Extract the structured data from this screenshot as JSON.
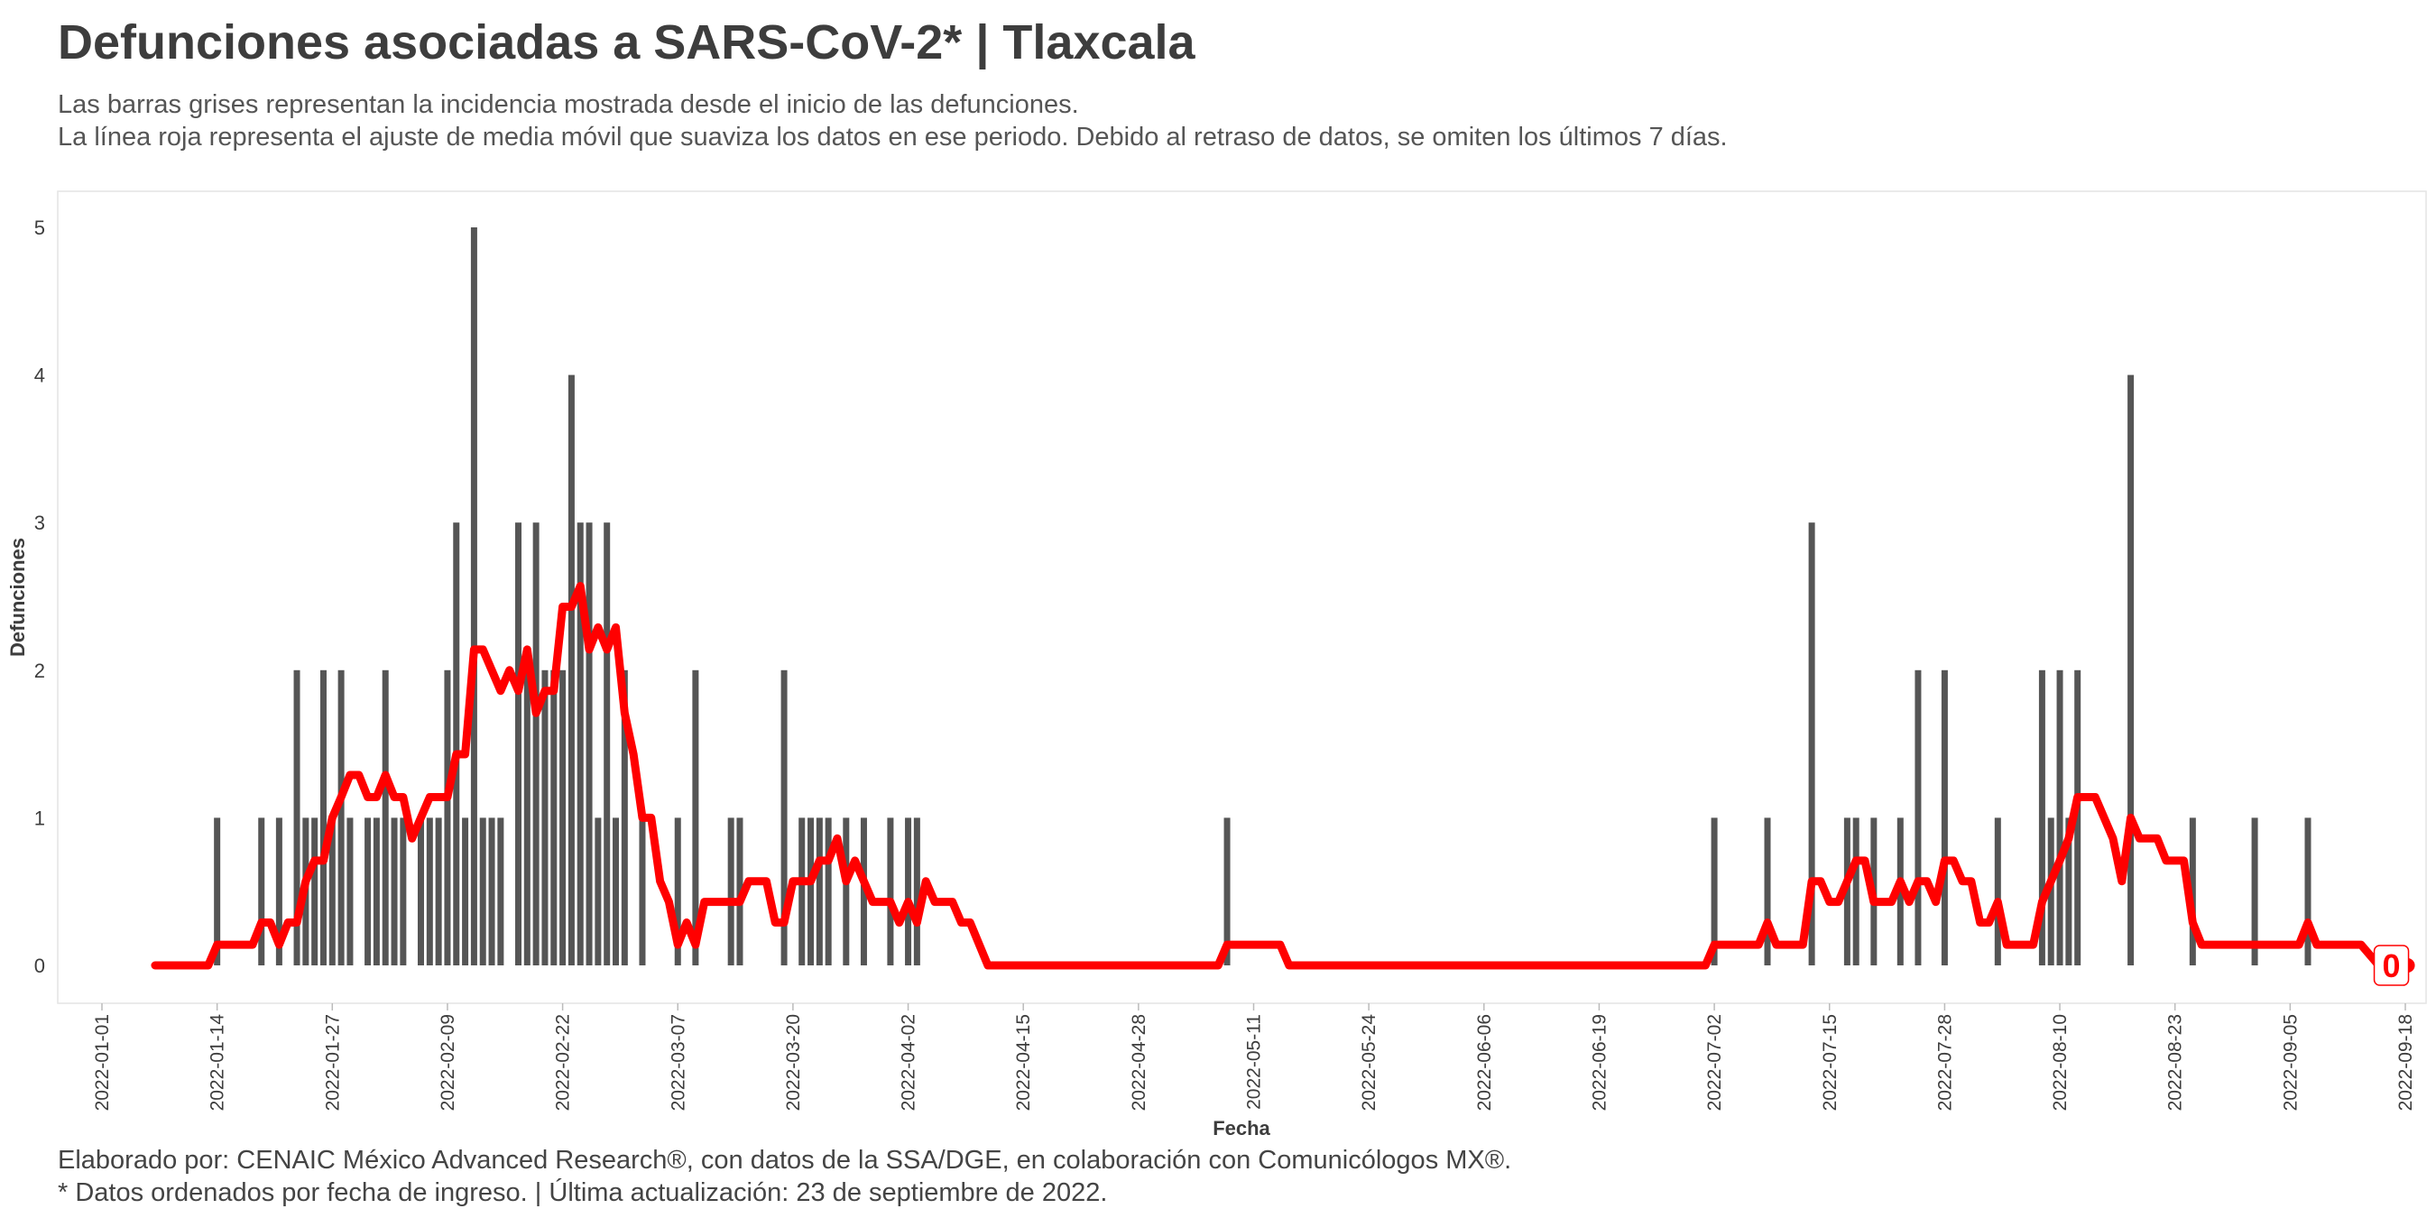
{
  "title": "Defunciones asociadas a SARS-CoV-2* | Tlaxcala",
  "subtitle_lines": [
    "Las barras grises representan la incidencia mostrada desde el inicio de las defunciones.",
    "La línea roja representa el ajuste de media móvil que suaviza los datos en ese periodo. Debido al retraso de datos, se omiten los últimos 7 días."
  ],
  "caption_lines": [
    "Elaborado por: CENAIC México Advanced Research®, con datos de la SSA/DGE, en colaboración con Comunicólogos MX®.",
    "* Datos ordenados por fecha de ingreso. | Última actualización: 23 de septiembre de 2022."
  ],
  "colors": {
    "bars": "#555555",
    "line": "#ff0000",
    "text": "#3d3d3d",
    "panel_border": "#e4e4e4"
  },
  "chart_data": {
    "type": "bar",
    "xlabel": "Fecha",
    "ylabel": "Defunciones",
    "x_range": [
      "2022-01-01",
      "2022-09-18"
    ],
    "ylim": [
      0,
      5
    ],
    "x_ticks": [
      "2022-01-01",
      "2022-01-14",
      "2022-01-27",
      "2022-02-09",
      "2022-02-22",
      "2022-03-07",
      "2022-03-20",
      "2022-04-02",
      "2022-04-15",
      "2022-04-28",
      "2022-05-11",
      "2022-05-24",
      "2022-06-06",
      "2022-06-19",
      "2022-07-02",
      "2022-07-15",
      "2022-07-28",
      "2022-08-10",
      "2022-08-23",
      "2022-09-05",
      "2022-09-18"
    ],
    "y_ticks": [
      0,
      1,
      2,
      3,
      4,
      5
    ],
    "grid": false,
    "end_label": "0",
    "bars": [
      [
        "2022-01-14",
        1
      ],
      [
        "2022-01-19",
        1
      ],
      [
        "2022-01-21",
        1
      ],
      [
        "2022-01-23",
        2
      ],
      [
        "2022-01-24",
        1
      ],
      [
        "2022-01-25",
        1
      ],
      [
        "2022-01-26",
        2
      ],
      [
        "2022-01-27",
        1
      ],
      [
        "2022-01-28",
        2
      ],
      [
        "2022-01-29",
        1
      ],
      [
        "2022-01-31",
        1
      ],
      [
        "2022-02-01",
        1
      ],
      [
        "2022-02-02",
        2
      ],
      [
        "2022-02-03",
        1
      ],
      [
        "2022-02-04",
        1
      ],
      [
        "2022-02-06",
        1
      ],
      [
        "2022-02-07",
        1
      ],
      [
        "2022-02-08",
        1
      ],
      [
        "2022-02-09",
        2
      ],
      [
        "2022-02-10",
        3
      ],
      [
        "2022-02-11",
        1
      ],
      [
        "2022-02-12",
        5
      ],
      [
        "2022-02-13",
        1
      ],
      [
        "2022-02-14",
        1
      ],
      [
        "2022-02-15",
        1
      ],
      [
        "2022-02-17",
        3
      ],
      [
        "2022-02-18",
        2
      ],
      [
        "2022-02-19",
        3
      ],
      [
        "2022-02-20",
        2
      ],
      [
        "2022-02-21",
        2
      ],
      [
        "2022-02-22",
        2
      ],
      [
        "2022-02-23",
        4
      ],
      [
        "2022-02-24",
        3
      ],
      [
        "2022-02-25",
        3
      ],
      [
        "2022-02-26",
        1
      ],
      [
        "2022-02-27",
        3
      ],
      [
        "2022-02-28",
        1
      ],
      [
        "2022-03-01",
        2
      ],
      [
        "2022-03-03",
        1
      ],
      [
        "2022-03-07",
        1
      ],
      [
        "2022-03-09",
        2
      ],
      [
        "2022-03-13",
        1
      ],
      [
        "2022-03-14",
        1
      ],
      [
        "2022-03-19",
        2
      ],
      [
        "2022-03-21",
        1
      ],
      [
        "2022-03-22",
        1
      ],
      [
        "2022-03-23",
        1
      ],
      [
        "2022-03-24",
        1
      ],
      [
        "2022-03-26",
        1
      ],
      [
        "2022-03-28",
        1
      ],
      [
        "2022-03-31",
        1
      ],
      [
        "2022-04-02",
        1
      ],
      [
        "2022-04-03",
        1
      ],
      [
        "2022-05-08",
        1
      ],
      [
        "2022-07-02",
        1
      ],
      [
        "2022-07-08",
        1
      ],
      [
        "2022-07-13",
        3
      ],
      [
        "2022-07-17",
        1
      ],
      [
        "2022-07-18",
        1
      ],
      [
        "2022-07-20",
        1
      ],
      [
        "2022-07-23",
        1
      ],
      [
        "2022-07-25",
        2
      ],
      [
        "2022-07-28",
        2
      ],
      [
        "2022-08-03",
        1
      ],
      [
        "2022-08-08",
        2
      ],
      [
        "2022-08-09",
        1
      ],
      [
        "2022-08-10",
        2
      ],
      [
        "2022-08-11",
        1
      ],
      [
        "2022-08-12",
        2
      ],
      [
        "2022-08-18",
        4
      ],
      [
        "2022-08-25",
        1
      ],
      [
        "2022-09-01",
        1
      ],
      [
        "2022-09-07",
        1
      ]
    ],
    "line": [
      [
        "2022-01-07",
        0
      ],
      [
        "2022-01-13",
        0
      ],
      [
        "2022-01-14",
        0.14
      ],
      [
        "2022-01-18",
        0.14
      ],
      [
        "2022-01-19",
        0.29
      ],
      [
        "2022-01-20",
        0.29
      ],
      [
        "2022-01-21",
        0.14
      ],
      [
        "2022-01-22",
        0.29
      ],
      [
        "2022-01-23",
        0.29
      ],
      [
        "2022-01-24",
        0.57
      ],
      [
        "2022-01-25",
        0.71
      ],
      [
        "2022-01-26",
        0.71
      ],
      [
        "2022-01-27",
        1.0
      ],
      [
        "2022-01-28",
        1.14
      ],
      [
        "2022-01-29",
        1.29
      ],
      [
        "2022-01-30",
        1.29
      ],
      [
        "2022-01-31",
        1.14
      ],
      [
        "2022-02-01",
        1.14
      ],
      [
        "2022-02-02",
        1.29
      ],
      [
        "2022-02-03",
        1.14
      ],
      [
        "2022-02-04",
        1.14
      ],
      [
        "2022-02-05",
        0.86
      ],
      [
        "2022-02-06",
        1.0
      ],
      [
        "2022-02-07",
        1.14
      ],
      [
        "2022-02-08",
        1.14
      ],
      [
        "2022-02-09",
        1.14
      ],
      [
        "2022-02-10",
        1.43
      ],
      [
        "2022-02-11",
        1.43
      ],
      [
        "2022-02-12",
        2.14
      ],
      [
        "2022-02-13",
        2.14
      ],
      [
        "2022-02-14",
        2.0
      ],
      [
        "2022-02-15",
        1.86
      ],
      [
        "2022-02-16",
        2.0
      ],
      [
        "2022-02-17",
        1.86
      ],
      [
        "2022-02-18",
        2.14
      ],
      [
        "2022-02-19",
        1.71
      ],
      [
        "2022-02-20",
        1.86
      ],
      [
        "2022-02-21",
        1.86
      ],
      [
        "2022-02-22",
        2.43
      ],
      [
        "2022-02-23",
        2.43
      ],
      [
        "2022-02-24",
        2.57
      ],
      [
        "2022-02-25",
        2.14
      ],
      [
        "2022-02-26",
        2.29
      ],
      [
        "2022-02-27",
        2.14
      ],
      [
        "2022-02-28",
        2.29
      ],
      [
        "2022-03-01",
        1.71
      ],
      [
        "2022-03-02",
        1.43
      ],
      [
        "2022-03-03",
        1.0
      ],
      [
        "2022-03-04",
        1.0
      ],
      [
        "2022-03-05",
        0.57
      ],
      [
        "2022-03-06",
        0.43
      ],
      [
        "2022-03-07",
        0.14
      ],
      [
        "2022-03-08",
        0.29
      ],
      [
        "2022-03-09",
        0.14
      ],
      [
        "2022-03-10",
        0.43
      ],
      [
        "2022-03-13",
        0.43
      ],
      [
        "2022-03-14",
        0.43
      ],
      [
        "2022-03-15",
        0.57
      ],
      [
        "2022-03-17",
        0.57
      ],
      [
        "2022-03-18",
        0.29
      ],
      [
        "2022-03-19",
        0.29
      ],
      [
        "2022-03-20",
        0.57
      ],
      [
        "2022-03-22",
        0.57
      ],
      [
        "2022-03-23",
        0.71
      ],
      [
        "2022-03-24",
        0.71
      ],
      [
        "2022-03-25",
        0.86
      ],
      [
        "2022-03-26",
        0.57
      ],
      [
        "2022-03-27",
        0.71
      ],
      [
        "2022-03-28",
        0.57
      ],
      [
        "2022-03-29",
        0.43
      ],
      [
        "2022-03-31",
        0.43
      ],
      [
        "2022-04-01",
        0.29
      ],
      [
        "2022-04-02",
        0.43
      ],
      [
        "2022-04-03",
        0.29
      ],
      [
        "2022-04-04",
        0.57
      ],
      [
        "2022-04-05",
        0.43
      ],
      [
        "2022-04-07",
        0.43
      ],
      [
        "2022-04-08",
        0.29
      ],
      [
        "2022-04-09",
        0.29
      ],
      [
        "2022-04-11",
        0
      ],
      [
        "2022-05-07",
        0
      ],
      [
        "2022-05-08",
        0.14
      ],
      [
        "2022-05-14",
        0.14
      ],
      [
        "2022-05-15",
        0
      ],
      [
        "2022-07-01",
        0
      ],
      [
        "2022-07-02",
        0.14
      ],
      [
        "2022-07-07",
        0.14
      ],
      [
        "2022-07-08",
        0.29
      ],
      [
        "2022-07-09",
        0.14
      ],
      [
        "2022-07-12",
        0.14
      ],
      [
        "2022-07-13",
        0.57
      ],
      [
        "2022-07-14",
        0.57
      ],
      [
        "2022-07-15",
        0.43
      ],
      [
        "2022-07-16",
        0.43
      ],
      [
        "2022-07-17",
        0.57
      ],
      [
        "2022-07-18",
        0.71
      ],
      [
        "2022-07-19",
        0.71
      ],
      [
        "2022-07-20",
        0.43
      ],
      [
        "2022-07-22",
        0.43
      ],
      [
        "2022-07-23",
        0.57
      ],
      [
        "2022-07-24",
        0.43
      ],
      [
        "2022-07-25",
        0.57
      ],
      [
        "2022-07-26",
        0.57
      ],
      [
        "2022-07-27",
        0.43
      ],
      [
        "2022-07-28",
        0.71
      ],
      [
        "2022-07-29",
        0.71
      ],
      [
        "2022-07-30",
        0.57
      ],
      [
        "2022-07-31",
        0.57
      ],
      [
        "2022-08-01",
        0.29
      ],
      [
        "2022-08-02",
        0.29
      ],
      [
        "2022-08-03",
        0.43
      ],
      [
        "2022-08-04",
        0.14
      ],
      [
        "2022-08-07",
        0.14
      ],
      [
        "2022-08-08",
        0.43
      ],
      [
        "2022-08-09",
        0.57
      ],
      [
        "2022-08-10",
        0.71
      ],
      [
        "2022-08-11",
        0.86
      ],
      [
        "2022-08-12",
        1.14
      ],
      [
        "2022-08-14",
        1.14
      ],
      [
        "2022-08-15",
        1.0
      ],
      [
        "2022-08-16",
        0.86
      ],
      [
        "2022-08-17",
        0.57
      ],
      [
        "2022-08-18",
        1.0
      ],
      [
        "2022-08-19",
        0.86
      ],
      [
        "2022-08-21",
        0.86
      ],
      [
        "2022-08-22",
        0.71
      ],
      [
        "2022-08-24",
        0.71
      ],
      [
        "2022-08-25",
        0.29
      ],
      [
        "2022-08-26",
        0.14
      ],
      [
        "2022-09-06",
        0.14
      ],
      [
        "2022-09-07",
        0.29
      ],
      [
        "2022-09-08",
        0.14
      ],
      [
        "2022-09-13",
        0.14
      ],
      [
        "2022-09-15",
        0
      ]
    ]
  }
}
